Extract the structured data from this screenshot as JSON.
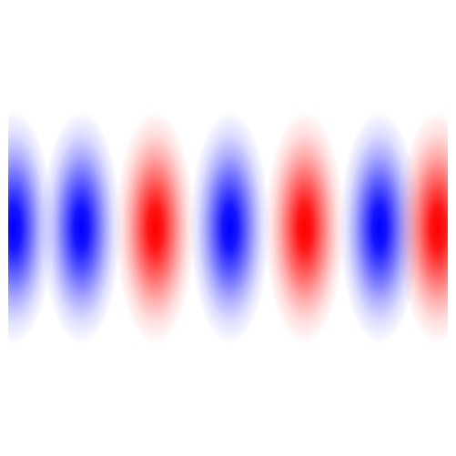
{
  "chart_data": {
    "type": "heatmap",
    "title": "",
    "xlabel": "",
    "ylabel": "",
    "grid": false,
    "axes_visible": false,
    "colormap": "bwr",
    "colors": {
      "positive": "#ff0000",
      "negative": "#0000ff",
      "zero": "#ffffff"
    },
    "value_range": [
      -1,
      1
    ],
    "lobes": [
      {
        "center": 0.03,
        "sign": -1,
        "clipped_left": true
      },
      {
        "center": 0.178,
        "sign": -1
      },
      {
        "center": 0.34,
        "sign": 1
      },
      {
        "center": 0.504,
        "sign": -1
      },
      {
        "center": 0.668,
        "sign": 1
      },
      {
        "center": 0.832,
        "sign": -1
      },
      {
        "center": 0.96,
        "sign": 1,
        "clipped_right": true
      }
    ]
  }
}
